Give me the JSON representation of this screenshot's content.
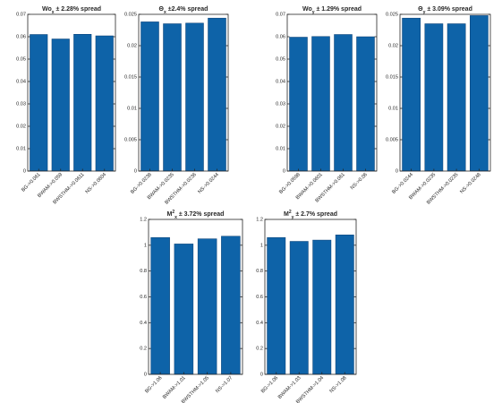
{
  "colors": {
    "bar": "#0e63a8",
    "axis": "#262626"
  },
  "chart_data": [
    {
      "type": "bar",
      "title_parts": [
        {
          "text": "Wo"
        },
        {
          "text": "x",
          "sub": true
        },
        {
          "text": " ± 2.28% spread"
        }
      ],
      "categories": [
        "BG->0.061",
        "BWAM->0.059",
        "BWSTHM->0.0611",
        "NS->0.0604"
      ],
      "values": [
        0.061,
        0.059,
        0.0611,
        0.0604
      ],
      "ylim": [
        0,
        0.07
      ],
      "yticks": [
        0,
        0.01,
        0.02,
        0.03,
        0.04,
        0.05,
        0.06,
        0.07
      ],
      "ytick_labels": [
        "0",
        "0.01",
        "0.02",
        "0.03",
        "0.04",
        "0.05",
        "0.06",
        "0.07"
      ],
      "grid": false
    },
    {
      "type": "bar",
      "title_parts": [
        {
          "text": "Θ"
        },
        {
          "text": "x",
          "sub": true
        },
        {
          "text": " ±2.4% spread"
        }
      ],
      "categories": [
        "BG->0.0238",
        "BWAM->0.0235",
        "BWSTHM->0.0236",
        "NS->0.0244"
      ],
      "values": [
        0.0238,
        0.0235,
        0.0236,
        0.0244
      ],
      "ylim": [
        0,
        0.025
      ],
      "yticks": [
        0,
        0.005,
        0.01,
        0.015,
        0.02,
        0.025
      ],
      "ytick_labels": [
        "0",
        "0.005",
        "0.01",
        "0.015",
        "0.02",
        "0.025"
      ],
      "grid": false
    },
    {
      "type": "bar",
      "title_parts": [
        {
          "text": "Wo"
        },
        {
          "text": "y",
          "sub": true
        },
        {
          "text": " ± 1.29% spread"
        }
      ],
      "categories": [
        "BG->0.0598",
        "BWAM->0.0601",
        "BWSTHM->0.061",
        "NS->0.06"
      ],
      "values": [
        0.0598,
        0.0601,
        0.061,
        0.06
      ],
      "ylim": [
        0,
        0.07
      ],
      "yticks": [
        0,
        0.01,
        0.02,
        0.03,
        0.04,
        0.05,
        0.06,
        0.07
      ],
      "ytick_labels": [
        "0",
        "0.01",
        "0.02",
        "0.03",
        "0.04",
        "0.05",
        "0.06",
        "0.07"
      ],
      "grid": false
    },
    {
      "type": "bar",
      "title_parts": [
        {
          "text": "Θ"
        },
        {
          "text": "y",
          "sub": true
        },
        {
          "text": " ± 3.09% spread"
        }
      ],
      "categories": [
        "BG->0.0244",
        "BWAM->0.0235",
        "BWSTHM->0.0235",
        "NS->0.0248"
      ],
      "values": [
        0.0244,
        0.0235,
        0.0235,
        0.0248
      ],
      "ylim": [
        0,
        0.025
      ],
      "yticks": [
        0,
        0.005,
        0.01,
        0.015,
        0.02,
        0.025
      ],
      "ytick_labels": [
        "0",
        "0.005",
        "0.01",
        "0.015",
        "0.02",
        "0.025"
      ],
      "grid": false
    },
    {
      "type": "bar",
      "title_parts": [
        {
          "text": "M"
        },
        {
          "text": "2",
          "sup": true
        },
        {
          "text": "x",
          "sub": true
        },
        {
          "text": " ± 3.72% spread"
        }
      ],
      "categories": [
        "BG->1.06",
        "BWAM->1.01",
        "BWSTHM->1.05",
        "NS->1.07"
      ],
      "values": [
        1.06,
        1.01,
        1.05,
        1.07
      ],
      "ylim": [
        0,
        1.2
      ],
      "yticks": [
        0,
        0.2,
        0.4,
        0.6,
        0.8,
        1,
        1.2
      ],
      "ytick_labels": [
        "0",
        "0.2",
        "0.4",
        "0.6",
        "0.8",
        "1",
        "1.2"
      ],
      "grid": false
    },
    {
      "type": "bar",
      "title_parts": [
        {
          "text": "M"
        },
        {
          "text": "2",
          "sup": true
        },
        {
          "text": "y",
          "sub": true
        },
        {
          "text": " ± 2.7% spread"
        }
      ],
      "categories": [
        "BG->1.06",
        "BWAM->1.03",
        "BWSTHM->1.04",
        "NS->1.08"
      ],
      "values": [
        1.06,
        1.03,
        1.04,
        1.08
      ],
      "ylim": [
        0,
        1.2
      ],
      "yticks": [
        0,
        0.2,
        0.4,
        0.6,
        0.8,
        1,
        1.2
      ],
      "ytick_labels": [
        "0",
        "0.2",
        "0.4",
        "0.6",
        "0.8",
        "1",
        "1.2"
      ],
      "grid": false
    }
  ]
}
